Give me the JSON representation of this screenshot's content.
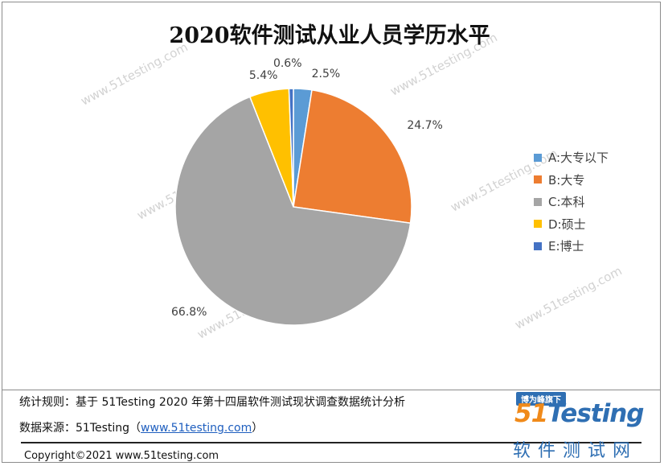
{
  "chart_data": {
    "type": "pie",
    "title": "2020软件测试从业人员学历水平",
    "slices": [
      {
        "label": "A:大专以下",
        "value": 2.5,
        "display": "2.5%",
        "color": "#5b9bd5"
      },
      {
        "label": "B:大专",
        "value": 24.7,
        "display": "24.7%",
        "color": "#ed7d31"
      },
      {
        "label": "C:本科",
        "value": 66.8,
        "display": "66.8%",
        "color": "#a5a5a5"
      },
      {
        "label": "D:硕士",
        "value": 5.4,
        "display": "5.4%",
        "color": "#ffc000"
      },
      {
        "label": "E:博士",
        "value": 0.6,
        "display": "0.6%",
        "color": "#4472c4"
      }
    ],
    "legend_position": "right",
    "start_angle_deg": 0,
    "direction": "clockwise"
  },
  "watermark_text": "www.51testing.com",
  "footer": {
    "rule_label": "统计规则：",
    "rule_text": "基于 51Testing 2020 年第十四届软件测试现状调查数据统计分析",
    "source_label": "数据来源：",
    "source_name": "51Testing",
    "source_paren_open": "（",
    "source_link": "www.51testing.com",
    "source_paren_close": "）",
    "copyright": "Copyright©2021 www.51testing.com"
  },
  "logo": {
    "badge": "博为峰旗下",
    "wordmark_prefix": "51",
    "wordmark_main": "Testing",
    "subtitle": "软件测试网"
  }
}
